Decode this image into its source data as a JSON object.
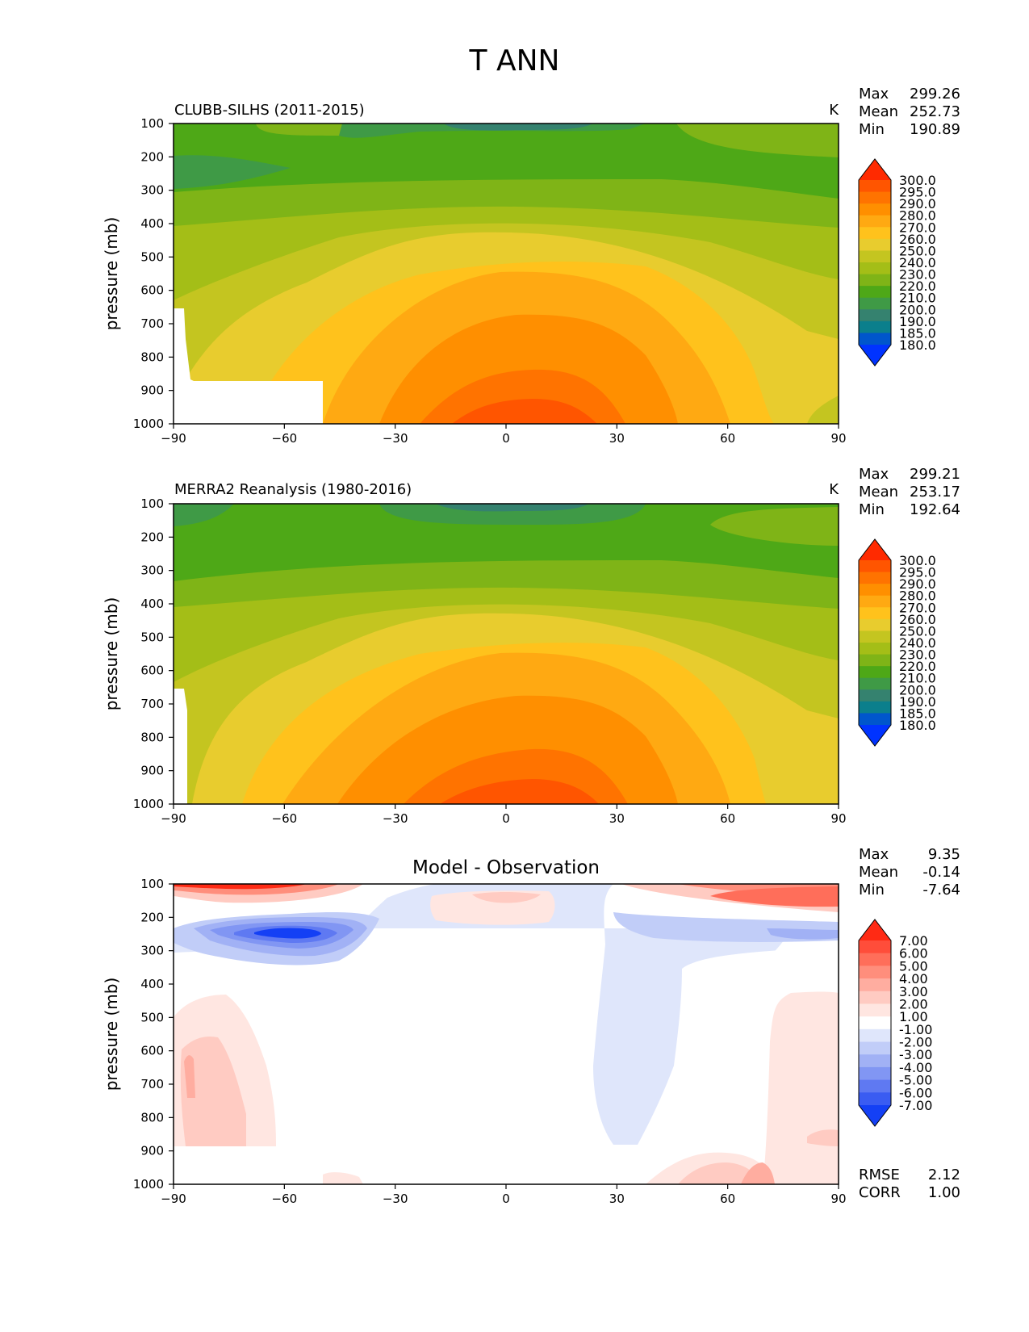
{
  "title": "T ANN",
  "chart_data": [
    {
      "type": "heatmap",
      "subtitle": "CLUBB-SILHS (2011-2015)",
      "units": "K",
      "xlabel": "",
      "ylabel": "pressure (mb)",
      "x_ticks": [
        -90,
        -60,
        -30,
        0,
        30,
        60,
        90
      ],
      "y_ticks": [
        100,
        200,
        300,
        400,
        500,
        600,
        700,
        800,
        900,
        1000
      ],
      "xlim": [
        -90,
        90
      ],
      "ylim": [
        1000,
        100
      ],
      "colorbar": {
        "levels": [
          "300.0",
          "295.0",
          "290.0",
          "280.0",
          "270.0",
          "260.0",
          "250.0",
          "240.0",
          "230.0",
          "220.0",
          "210.0",
          "200.0",
          "190.0",
          "185.0",
          "180.0"
        ],
        "colors": [
          "#ff2a00",
          "#ff5500",
          "#ff7300",
          "#ff8f00",
          "#ffa912",
          "#ffc21c",
          "#e8cc2e",
          "#c4c520",
          "#a4be17",
          "#7fb417",
          "#4ea817",
          "#3f9a46",
          "#35826f",
          "#0b7f8c",
          "#0056cc",
          "#0033ff"
        ]
      },
      "stats": [
        {
          "label": "Max",
          "value": "299.26"
        },
        {
          "label": "Mean",
          "value": "252.73"
        },
        {
          "label": "Min",
          "value": "190.89"
        }
      ]
    },
    {
      "type": "heatmap",
      "subtitle": "MERRA2 Reanalysis (1980-2016)",
      "units": "K",
      "xlabel": "",
      "ylabel": "pressure (mb)",
      "x_ticks": [
        -90,
        -60,
        -30,
        0,
        30,
        60,
        90
      ],
      "y_ticks": [
        100,
        200,
        300,
        400,
        500,
        600,
        700,
        800,
        900,
        1000
      ],
      "xlim": [
        -90,
        90
      ],
      "ylim": [
        1000,
        100
      ],
      "colorbar": {
        "levels": [
          "300.0",
          "295.0",
          "290.0",
          "280.0",
          "270.0",
          "260.0",
          "250.0",
          "240.0",
          "230.0",
          "220.0",
          "210.0",
          "200.0",
          "190.0",
          "185.0",
          "180.0"
        ],
        "colors": [
          "#ff2a00",
          "#ff5500",
          "#ff7300",
          "#ff8f00",
          "#ffa912",
          "#ffc21c",
          "#e8cc2e",
          "#c4c520",
          "#a4be17",
          "#7fb417",
          "#4ea817",
          "#3f9a46",
          "#35826f",
          "#0b7f8c",
          "#0056cc",
          "#0033ff"
        ]
      },
      "stats": [
        {
          "label": "Max",
          "value": "299.21"
        },
        {
          "label": "Mean",
          "value": "253.17"
        },
        {
          "label": "Min",
          "value": "192.64"
        }
      ]
    },
    {
      "type": "heatmap",
      "title": "Model - Observation",
      "xlabel": "",
      "ylabel": "pressure (mb)",
      "x_ticks": [
        -90,
        -60,
        -30,
        0,
        30,
        60,
        90
      ],
      "y_ticks": [
        100,
        200,
        300,
        400,
        500,
        600,
        700,
        800,
        900,
        1000
      ],
      "xlim": [
        -90,
        90
      ],
      "ylim": [
        1000,
        100
      ],
      "colorbar": {
        "levels": [
          "7.00",
          "6.00",
          "5.00",
          "4.00",
          "3.00",
          "2.00",
          "1.00",
          "-1.00",
          "-2.00",
          "-3.00",
          "-4.00",
          "-5.00",
          "-6.00",
          "-7.00"
        ],
        "colors": [
          "#ff2a14",
          "#ff4d3a",
          "#ff6e5a",
          "#ff8e7c",
          "#ffada0",
          "#ffcbc2",
          "#ffe6e1",
          "#ffffff",
          "#dfe6fb",
          "#c1cdf8",
          "#a1b1f5",
          "#8196f3",
          "#5f79f2",
          "#3a5cf2",
          "#1440f5"
        ]
      },
      "stats": [
        {
          "label": "Max",
          "value": "9.35"
        },
        {
          "label": "Mean",
          "value": "-0.14"
        },
        {
          "label": "Min",
          "value": "-7.64"
        }
      ],
      "extra_stats": [
        {
          "label": "RMSE",
          "value": "2.12"
        },
        {
          "label": "CORR",
          "value": "1.00"
        }
      ]
    }
  ]
}
